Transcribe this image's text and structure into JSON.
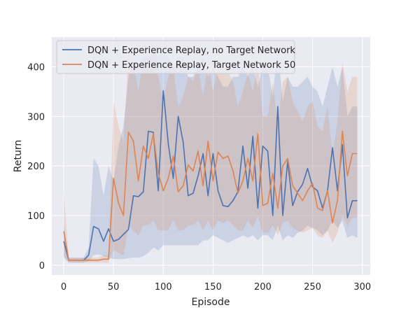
{
  "chart_data": {
    "type": "line",
    "xlabel": "Episode",
    "ylabel": "Return",
    "xlim": [
      -12,
      308
    ],
    "ylim": [
      -20,
      460
    ],
    "xticks": [
      0,
      50,
      100,
      150,
      200,
      250,
      300
    ],
    "yticks": [
      0,
      100,
      200,
      300,
      400
    ],
    "grid": true,
    "background": "#eaeaf2",
    "legend_position": "top-left",
    "x": [
      0,
      5,
      10,
      15,
      20,
      25,
      30,
      35,
      40,
      45,
      50,
      55,
      60,
      65,
      70,
      75,
      80,
      85,
      90,
      95,
      100,
      105,
      110,
      115,
      120,
      125,
      130,
      135,
      140,
      145,
      150,
      155,
      160,
      165,
      170,
      175,
      180,
      185,
      190,
      195,
      200,
      205,
      210,
      215,
      220,
      225,
      230,
      235,
      240,
      245,
      250,
      255,
      260,
      265,
      270,
      275,
      280,
      285,
      290,
      295
    ],
    "series": [
      {
        "name": "DQN + Experience Replay, no Target Network",
        "color": "#4c72b0",
        "values": [
          48,
          10,
          10,
          10,
          10,
          20,
          78,
          73,
          48,
          73,
          48,
          52,
          62,
          72,
          140,
          138,
          148,
          270,
          268,
          150,
          352,
          245,
          175,
          300,
          248,
          140,
          145,
          180,
          225,
          140,
          225,
          150,
          120,
          118,
          130,
          148,
          240,
          155,
          260,
          115,
          240,
          230,
          100,
          320,
          100,
          210,
          120,
          148,
          163,
          195,
          158,
          150,
          115,
          150,
          237,
          150,
          243,
          95,
          130,
          130
        ],
        "lower": [
          15,
          5,
          5,
          5,
          5,
          8,
          20,
          22,
          18,
          15,
          12,
          12,
          12,
          14,
          15,
          15,
          18,
          25,
          35,
          30,
          40,
          40,
          40,
          40,
          40,
          40,
          40,
          40,
          50,
          50,
          60,
          55,
          50,
          45,
          50,
          55,
          60,
          55,
          60,
          50,
          60,
          60,
          50,
          80,
          50,
          60,
          55,
          65,
          70,
          80,
          75,
          70,
          60,
          70,
          90,
          75,
          90,
          55,
          60,
          55
        ],
        "upper": [
          80,
          15,
          15,
          15,
          15,
          35,
          215,
          200,
          140,
          200,
          170,
          240,
          280,
          380,
          410,
          400,
          420,
          420,
          430,
          420,
          430,
          420,
          400,
          420,
          420,
          380,
          380,
          400,
          420,
          380,
          400,
          380,
          360,
          360,
          380,
          380,
          400,
          380,
          400,
          360,
          400,
          400,
          340,
          440,
          330,
          380,
          360,
          360,
          370,
          380,
          360,
          350,
          320,
          360,
          400,
          360,
          400,
          300,
          320,
          320
        ]
      },
      {
        "name": "DQN + Experience Replay, Target Network 50",
        "color": "#dd8452",
        "values": [
          68,
          10,
          10,
          10,
          10,
          10,
          10,
          10,
          12,
          12,
          175,
          125,
          100,
          268,
          250,
          170,
          240,
          215,
          265,
          185,
          150,
          175,
          220,
          148,
          160,
          202,
          190,
          230,
          160,
          250,
          170,
          228,
          215,
          220,
          190,
          145,
          170,
          215,
          170,
          265,
          120,
          125,
          185,
          115,
          200,
          215,
          160,
          145,
          130,
          150,
          165,
          115,
          110,
          150,
          85,
          130,
          270,
          180,
          225,
          225
        ],
        "lower": [
          20,
          5,
          5,
          5,
          5,
          5,
          5,
          5,
          5,
          5,
          30,
          25,
          20,
          80,
          70,
          60,
          80,
          80,
          90,
          70,
          70,
          70,
          90,
          70,
          70,
          80,
          80,
          90,
          70,
          90,
          70,
          90,
          85,
          90,
          80,
          70,
          70,
          90,
          75,
          100,
          65,
          65,
          80,
          60,
          85,
          90,
          75,
          70,
          65,
          70,
          75,
          60,
          55,
          70,
          45,
          65,
          100,
          80,
          95,
          95
        ],
        "upper": [
          150,
          15,
          15,
          15,
          15,
          15,
          15,
          15,
          20,
          20,
          330,
          280,
          250,
          420,
          410,
          350,
          420,
          400,
          430,
          380,
          330,
          380,
          400,
          320,
          340,
          380,
          370,
          400,
          340,
          410,
          350,
          400,
          390,
          390,
          370,
          320,
          350,
          390,
          350,
          410,
          300,
          300,
          370,
          280,
          370,
          380,
          330,
          310,
          290,
          320,
          330,
          280,
          270,
          320,
          220,
          290,
          410,
          350,
          380,
          380
        ]
      }
    ]
  }
}
